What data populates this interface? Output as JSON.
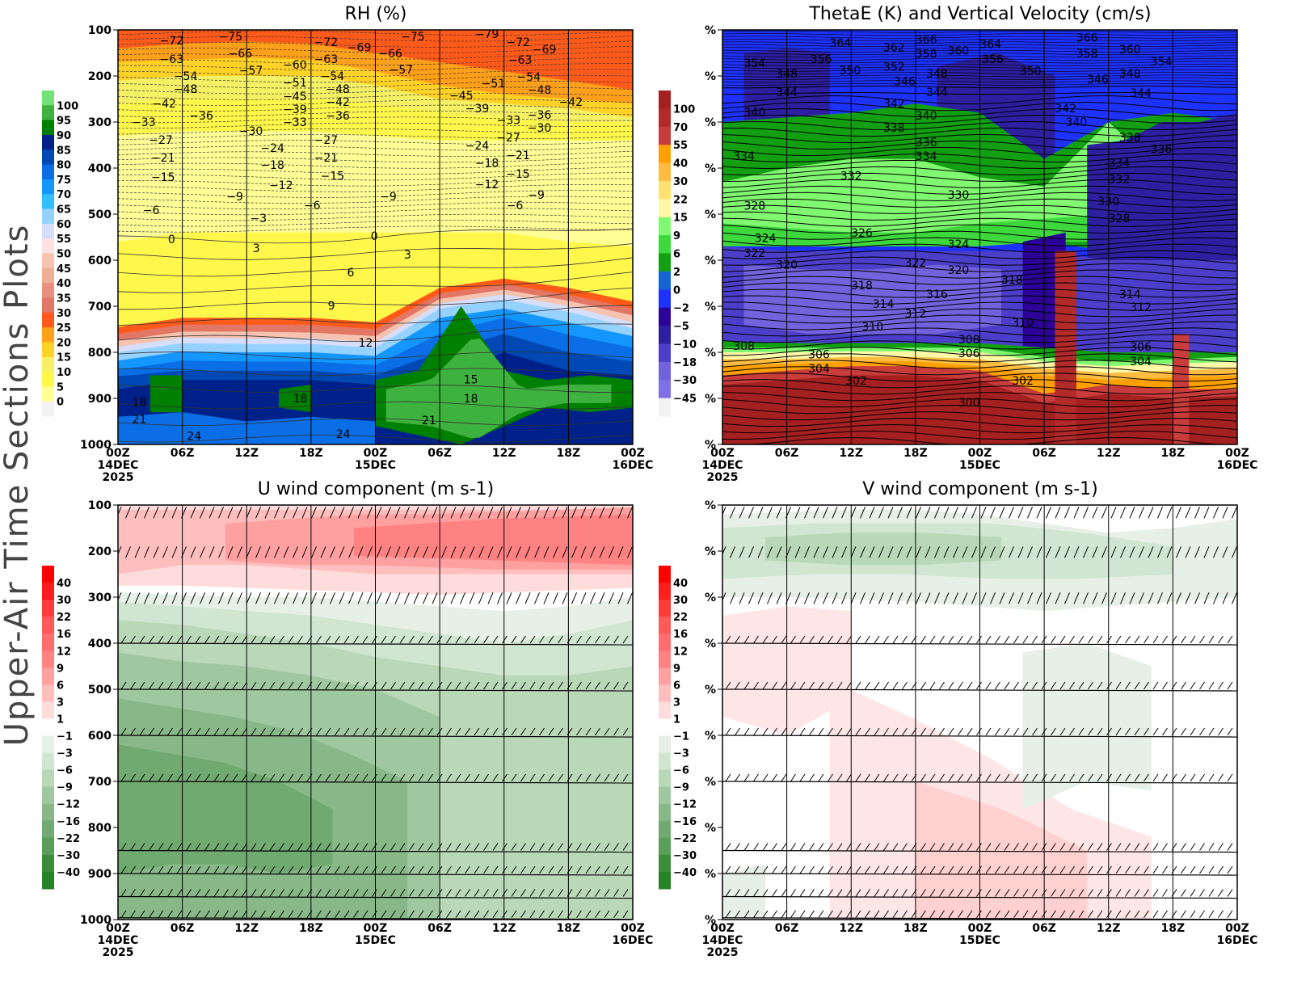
{
  "side_label": "Upper-Air Time Sections Plots",
  "x_ticks": [
    "00Z",
    "06Z",
    "12Z",
    "18Z",
    "00Z",
    "06Z",
    "12Z",
    "18Z",
    "00Z"
  ],
  "x_dates": [
    {
      "tick": 0,
      "day": "14DEC",
      "year": "2025"
    },
    {
      "tick": 4,
      "day": "15DEC"
    },
    {
      "tick": 8,
      "day": "16DEC"
    }
  ],
  "pressure_levels": [
    100,
    200,
    300,
    400,
    500,
    600,
    700,
    800,
    900,
    1000
  ],
  "chart_data": [
    {
      "id": "rh",
      "type": "heatmap",
      "title": "RH (%)",
      "y_tick_labels": [
        "100",
        "200",
        "300",
        "400",
        "500",
        "600",
        "700",
        "800",
        "900",
        "1000"
      ],
      "xlim_hours": [
        0,
        48
      ],
      "ylim_hPa": [
        1000,
        100
      ],
      "colorbar": {
        "labels": [
          "100",
          "95",
          "90",
          "85",
          "80",
          "75",
          "70",
          "65",
          "60",
          "55",
          "50",
          "45",
          "40",
          "35",
          "30",
          "25",
          "20",
          "15",
          "10",
          "5",
          "0"
        ],
        "colors": [
          "#72e27a",
          "#3eb23e",
          "#008000",
          "#00208a",
          "#0048b4",
          "#0a6ee6",
          "#1496ff",
          "#32beff",
          "#96d2ff",
          "#d7defa",
          "#ffe1e1",
          "#f5c3b0",
          "#edae94",
          "#e88f80",
          "#e37766",
          "#ff5a1a",
          "#ffa01a",
          "#ffd228",
          "#f5f064",
          "#fff84a",
          "#ffff96",
          "#f2f2f2"
        ]
      },
      "contour_labels": [
        {
          "v": "-72",
          "t": 5,
          "p": 123
        },
        {
          "v": "-75",
          "t": 10.5,
          "p": 114
        },
        {
          "v": "-72",
          "t": 19.4,
          "p": 126
        },
        {
          "v": "-69",
          "t": 22.5,
          "p": 138
        },
        {
          "v": "-66",
          "t": 25.4,
          "p": 151
        },
        {
          "v": "-75",
          "t": 27.5,
          "p": 114
        },
        {
          "v": "-79",
          "t": 34.4,
          "p": 109
        },
        {
          "v": "-72",
          "t": 34.4,
          "p": 126
        },
        {
          "v": "-69",
          "t": 38.3,
          "p": 142
        },
        {
          "v": "-63",
          "t": 37.5,
          "p": 165
        },
        {
          "v": "-66",
          "t": 11.4,
          "p": 151
        },
        {
          "v": "-63",
          "t": 5,
          "p": 163
        },
        {
          "v": "-63",
          "t": 19.4,
          "p": 163
        },
        {
          "v": "-60",
          "t": 16.5,
          "p": 175
        },
        {
          "v": "-57",
          "t": 12.4,
          "p": 188
        },
        {
          "v": "-57",
          "t": 26.4,
          "p": 186
        },
        {
          "v": "-54",
          "t": 6.3,
          "p": 200
        },
        {
          "v": "-54",
          "t": 20,
          "p": 200
        },
        {
          "v": "-54",
          "t": 38.3,
          "p": 202
        },
        {
          "v": "-51",
          "t": 16.5,
          "p": 214
        },
        {
          "v": "-51",
          "t": 35,
          "p": 216
        },
        {
          "v": "-48",
          "t": 6.3,
          "p": 228
        },
        {
          "v": "-48",
          "t": 20.5,
          "p": 228
        },
        {
          "v": "-48",
          "t": 39.3,
          "p": 230
        },
        {
          "v": "-45",
          "t": 16.5,
          "p": 244
        },
        {
          "v": "-45",
          "t": 36.4,
          "p": 242
        },
        {
          "v": "-42",
          "t": 4.3,
          "p": 260
        },
        {
          "v": "-42",
          "t": 20.5,
          "p": 256
        },
        {
          "v": "-42",
          "t": 39.3,
          "p": 256
        },
        {
          "v": "-39",
          "t": 16.5,
          "p": 272
        },
        {
          "v": "-39",
          "t": 33.5,
          "p": 270
        },
        {
          "v": "-36",
          "t": 6.3,
          "p": 286
        },
        {
          "v": "-36",
          "t": 20.5,
          "p": 286
        },
        {
          "v": "-36",
          "t": 39.3,
          "p": 284
        },
        {
          "v": "-33",
          "t": 2.4,
          "p": 300
        },
        {
          "v": "-33",
          "t": 16.5,
          "p": 300
        },
        {
          "v": "-33",
          "t": 33.5,
          "p": 296
        },
        {
          "v": "-30",
          "t": 12.4,
          "p": 319
        },
        {
          "v": "-30",
          "t": 39.3,
          "p": 312
        },
        {
          "v": "-27",
          "t": 4,
          "p": 339
        },
        {
          "v": "-27",
          "t": 19.4,
          "p": 339
        },
        {
          "v": "-27",
          "t": 36.4,
          "p": 333
        },
        {
          "v": "-24",
          "t": 14.4,
          "p": 356
        },
        {
          "v": "-24",
          "t": 33.5,
          "p": 351
        },
        {
          "v": "-21",
          "t": 4.2,
          "p": 377
        },
        {
          "v": "-21",
          "t": 19.4,
          "p": 377
        },
        {
          "v": "-21",
          "t": 37.3,
          "p": 372
        },
        {
          "v": "-18",
          "t": 14.4,
          "p": 393
        },
        {
          "v": "-18",
          "t": 34.4,
          "p": 389
        },
        {
          "v": "-15",
          "t": 4.2,
          "p": 419
        },
        {
          "v": "-15",
          "t": 20,
          "p": 417
        },
        {
          "v": "-15",
          "t": 37.3,
          "p": 412
        },
        {
          "v": "-12",
          "t": 15.2,
          "p": 437
        },
        {
          "v": "-12",
          "t": 34.4,
          "p": 435
        },
        {
          "v": "-9",
          "t": 10.9,
          "p": 461
        },
        {
          "v": "-9",
          "t": 25.2,
          "p": 461
        },
        {
          "v": "-9",
          "t": 39,
          "p": 458
        },
        {
          "v": "-6",
          "t": 3.1,
          "p": 491
        },
        {
          "v": "-6",
          "t": 18.1,
          "p": 481
        },
        {
          "v": "-6",
          "t": 37,
          "p": 481
        },
        {
          "v": "-3",
          "t": 13.1,
          "p": 509
        },
        {
          "v": "0",
          "t": 5,
          "p": 554
        },
        {
          "v": "0",
          "t": 23.9,
          "p": 547
        },
        {
          "v": "3",
          "t": 12.9,
          "p": 574
        },
        {
          "v": "3",
          "t": 27,
          "p": 588
        },
        {
          "v": "6",
          "t": 21.7,
          "p": 626
        },
        {
          "v": "9",
          "t": 19.9,
          "p": 698
        },
        {
          "v": "12",
          "t": 23.1,
          "p": 779
        },
        {
          "v": "15",
          "t": 32.9,
          "p": 859
        },
        {
          "v": "18",
          "t": 2,
          "p": 908
        },
        {
          "v": "18",
          "t": 17,
          "p": 900
        },
        {
          "v": "18",
          "t": 32.9,
          "p": 900
        },
        {
          "v": "21",
          "t": 2,
          "p": 945
        },
        {
          "v": "21",
          "t": 29,
          "p": 947
        },
        {
          "v": "24",
          "t": 7.1,
          "p": 982
        },
        {
          "v": "24",
          "t": 21,
          "p": 977
        }
      ]
    },
    {
      "id": "thetae",
      "type": "heatmap",
      "title": "ThetaE (K) and Vertical Velocity (cm/s)",
      "y_tick_labels": [
        "%",
        "%",
        "%",
        "%",
        "%",
        "%",
        "%",
        "%",
        "%",
        "%"
      ],
      "xlim_hours": [
        0,
        48
      ],
      "ylim_hPa": [
        1000,
        100
      ],
      "colorbar": {
        "labels": [
          "100",
          "70",
          "55",
          "40",
          "30",
          "22",
          "15",
          "9",
          "6",
          "2",
          "0",
          "-2",
          "-5",
          "-10",
          "-18",
          "-30",
          "-45"
        ],
        "colors": [
          "#a52020",
          "#b22a2a",
          "#c83c3c",
          "#ffa000",
          "#ffbc40",
          "#ffe070",
          "#fff8a8",
          "#80f870",
          "#3cd83c",
          "#12a012",
          "#1464d2",
          "#1e32ff",
          "#2c0399",
          "#2c1fa0",
          "#4b3ec8",
          "#7262db",
          "#8070e6",
          "#f2f2f2"
        ]
      },
      "contour_labels": [
        {
          "v": "364",
          "t": 11,
          "p": 128
        },
        {
          "v": "362",
          "t": 16,
          "p": 138
        },
        {
          "v": "366",
          "t": 19,
          "p": 121
        },
        {
          "v": "358",
          "t": 19,
          "p": 152
        },
        {
          "v": "364",
          "t": 25,
          "p": 131
        },
        {
          "v": "360",
          "t": 22,
          "p": 145
        },
        {
          "v": "366",
          "t": 34,
          "p": 117
        },
        {
          "v": "360",
          "t": 38,
          "p": 142
        },
        {
          "v": "358",
          "t": 34,
          "p": 151
        },
        {
          "v": "354",
          "t": 38,
          "p": 168
        },
        {
          "v": "348",
          "t": 38,
          "p": 195
        },
        {
          "v": "356",
          "t": 9.2,
          "p": 163
        },
        {
          "v": "356",
          "t": 25.2,
          "p": 163
        },
        {
          "v": "354",
          "t": 3,
          "p": 172
        },
        {
          "v": "352",
          "t": 16,
          "p": 180
        },
        {
          "v": "350",
          "t": 11.9,
          "p": 188
        },
        {
          "v": "350",
          "t": 25.8,
          "p": 189
        },
        {
          "v": "348",
          "t": 6,
          "p": 195
        },
        {
          "v": "348",
          "t": 20,
          "p": 195
        },
        {
          "v": "346",
          "t": 17,
          "p": 211
        },
        {
          "v": "346",
          "t": 35,
          "p": 207
        },
        {
          "v": "344",
          "t": 6,
          "p": 235
        },
        {
          "v": "344",
          "t": 20,
          "p": 235
        },
        {
          "v": "344",
          "t": 39,
          "p": 237
        },
        {
          "v": "342",
          "t": 16,
          "p": 260
        },
        {
          "v": "342",
          "t": 32,
          "p": 270
        },
        {
          "v": "340",
          "t": 3,
          "p": 279
        },
        {
          "v": "340",
          "t": 19,
          "p": 286
        },
        {
          "v": "340",
          "t": 33,
          "p": 300
        },
        {
          "v": "338",
          "t": 16,
          "p": 312
        },
        {
          "v": "338",
          "t": 38,
          "p": 333
        },
        {
          "v": "336",
          "t": 19,
          "p": 344
        },
        {
          "v": "336",
          "t": 38,
          "p": 359
        },
        {
          "v": "334",
          "t": 19,
          "p": 374
        },
        {
          "v": "334",
          "t": 2,
          "p": 374
        },
        {
          "v": "334",
          "t": 37,
          "p": 389
        },
        {
          "v": "332",
          "t": 12,
          "p": 417
        },
        {
          "v": "332",
          "t": 37,
          "p": 424
        },
        {
          "v": "330",
          "t": 22,
          "p": 458
        },
        {
          "v": "330",
          "t": 36,
          "p": 472
        },
        {
          "v": "328",
          "t": 3,
          "p": 482
        },
        {
          "v": "328",
          "t": 37,
          "p": 509
        },
        {
          "v": "326",
          "t": 13,
          "p": 540
        },
        {
          "v": "324",
          "t": 4,
          "p": 552
        },
        {
          "v": "324",
          "t": 22,
          "p": 565
        },
        {
          "v": "322",
          "t": 3,
          "p": 584
        },
        {
          "v": "322",
          "t": 18,
          "p": 605
        },
        {
          "v": "320",
          "t": 6,
          "p": 610
        },
        {
          "v": "320",
          "t": 22,
          "p": 621
        },
        {
          "v": "318",
          "t": 13,
          "p": 654
        },
        {
          "v": "318",
          "t": 27,
          "p": 642
        },
        {
          "v": "316",
          "t": 20,
          "p": 674
        },
        {
          "v": "314",
          "t": 15,
          "p": 695
        },
        {
          "v": "314",
          "t": 38,
          "p": 674
        },
        {
          "v": "312",
          "t": 18,
          "p": 716
        },
        {
          "v": "312",
          "t": 39,
          "p": 702
        },
        {
          "v": "310",
          "t": 14,
          "p": 744
        },
        {
          "v": "310",
          "t": 28,
          "p": 735
        },
        {
          "v": "308",
          "t": 2,
          "p": 786
        },
        {
          "v": "308",
          "t": 23,
          "p": 772
        },
        {
          "v": "306",
          "t": 9,
          "p": 804
        },
        {
          "v": "306",
          "t": 23,
          "p": 802
        },
        {
          "v": "306",
          "t": 39,
          "p": 788
        },
        {
          "v": "304",
          "t": 9,
          "p": 835
        },
        {
          "v": "304",
          "t": 39,
          "p": 819
        },
        {
          "v": "302",
          "t": 11,
          "p": 861
        },
        {
          "v": "302",
          "t": 28,
          "p": 861
        },
        {
          "v": "300",
          "t": 23,
          "p": 909
        }
      ]
    },
    {
      "id": "uwind",
      "type": "heatmap",
      "title": "U wind component (m s-1)",
      "y_tick_labels": [
        "100",
        "200",
        "300",
        "400",
        "500",
        "600",
        "700",
        "800",
        "900",
        "1000"
      ],
      "xlim_hours": [
        0,
        48
      ],
      "ylim_hPa": [
        1000,
        100
      ],
      "barb_levels_hPa": [
        100,
        190,
        290,
        400,
        500,
        600,
        700,
        850,
        900,
        950,
        1000
      ],
      "colorbar": {
        "labels": [
          "40",
          "30",
          "22",
          "16",
          "12",
          "9",
          "6",
          "3",
          "1",
          "-1",
          "-3",
          "-6",
          "-9",
          "-12",
          "-16",
          "-22",
          "-30",
          "-40"
        ],
        "colors": [
          "#ff0000",
          "#ff1e1e",
          "#ff3c3c",
          "#ff5a5a",
          "#ff6e6e",
          "#ff8282",
          "#ffa0a0",
          "#ffbebe",
          "#ffdcdc",
          "#ffffff",
          "#e6f0e6",
          "#d0e6d0",
          "#b8d8b8",
          "#a0c8a0",
          "#88b888",
          "#70aa70",
          "#5a9e5a",
          "#3c8c3c",
          "#288228"
        ]
      },
      "contour_labels": []
    },
    {
      "id": "vwind",
      "type": "heatmap",
      "title": "V wind component (m s-1)",
      "y_tick_labels": [
        "%",
        "%",
        "%",
        "%",
        "%",
        "%",
        "%",
        "%",
        "%",
        "%"
      ],
      "xlim_hours": [
        0,
        48
      ],
      "ylim_hPa": [
        1000,
        100
      ],
      "barb_levels_hPa": [
        100,
        190,
        290,
        400,
        500,
        600,
        700,
        850,
        900,
        950,
        1000
      ],
      "colorbar": {
        "labels": [
          "40",
          "30",
          "22",
          "16",
          "12",
          "9",
          "6",
          "3",
          "1",
          "-1",
          "-3",
          "-6",
          "-9",
          "-12",
          "-16",
          "-22",
          "-30",
          "-40"
        ],
        "colors": [
          "#ff0000",
          "#ff1e1e",
          "#ff3c3c",
          "#ff5a5a",
          "#ff6e6e",
          "#ff8282",
          "#ffa0a0",
          "#ffbebe",
          "#ffdcdc",
          "#ffffff",
          "#e6f0e6",
          "#d0e6d0",
          "#b8d8b8",
          "#a0c8a0",
          "#88b888",
          "#70aa70",
          "#5a9e5a",
          "#3c8c3c",
          "#288228"
        ]
      },
      "contour_labels": []
    }
  ]
}
